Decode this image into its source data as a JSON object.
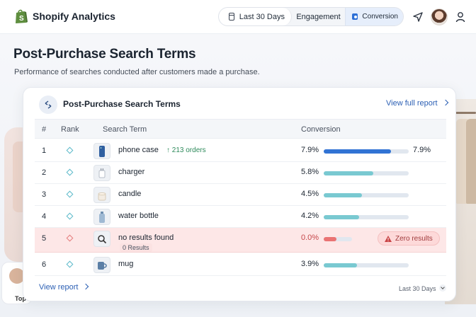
{
  "header": {
    "brand": "Shopify Analytics",
    "segments": [
      {
        "label": "Last 30 Days"
      },
      {
        "label": "Engagement"
      },
      {
        "label": "Conversion",
        "active": true
      }
    ]
  },
  "page": {
    "title": "Post-Purchase Search Terms",
    "subtitle": "Performance of searches conducted after customers made a purchase."
  },
  "card": {
    "title": "Post-Purchase Search Terms",
    "view_full_report": "View full report",
    "columns": {
      "num": "#",
      "rank": "Rank",
      "term": "Search Term",
      "conversion": "Conversion"
    },
    "rows": [
      {
        "num": "1",
        "term": "phone case",
        "badge": "↑ 213 orders",
        "pct": "7.9%",
        "end_pct": "7.9%",
        "value": 7.9,
        "icon": "phone-case-icon"
      },
      {
        "num": "2",
        "term": "charger",
        "pct": "5.8%",
        "value": 5.8,
        "icon": "charger-icon"
      },
      {
        "num": "3",
        "term": "candle",
        "pct": "4.5%",
        "value": 4.5,
        "icon": "candle-icon"
      },
      {
        "num": "4",
        "term": "water bottle",
        "pct": "4.2%",
        "value": 4.2,
        "icon": "water-bottle-icon"
      },
      {
        "num": "5",
        "term": "no results found",
        "sub": "0 Results",
        "pct": "0.0%",
        "alert": "Zero results",
        "value": 0.0,
        "icon": "search-icon"
      },
      {
        "num": "6",
        "term": "mug",
        "pct": "3.9%",
        "value": 3.9,
        "icon": "mug-icon"
      }
    ],
    "scale_max": 10,
    "footer_link": "View report",
    "footer_range": "Last 30 Days"
  },
  "background": {
    "person_label": "Top"
  },
  "colors": {
    "accent": "#3173d4",
    "teal": "#79c9d1",
    "alert": "#ea7373",
    "brand_green": "#5e8e3e"
  }
}
